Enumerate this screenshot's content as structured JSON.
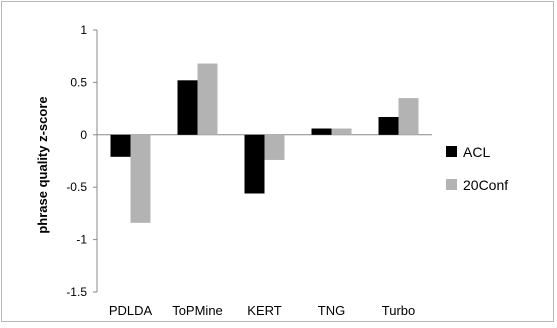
{
  "chart_data": {
    "type": "bar",
    "title": "",
    "xlabel": "",
    "ylabel": "phrase quality z-score",
    "ylim": [
      -1.5,
      1
    ],
    "yticks": [
      1,
      0.5,
      0,
      -0.5,
      -1,
      -1.5
    ],
    "ytick_labels": [
      "1",
      "0.5",
      "0",
      "-0.5",
      "-1",
      "-1.5"
    ],
    "categories": [
      "PDLDA",
      "ToPMine",
      "KERT",
      "TNG",
      "Turbo"
    ],
    "grid": false,
    "legend_position": "right",
    "series": [
      {
        "name": "ACL",
        "color": "#000000",
        "values": [
          -0.21,
          0.52,
          -0.56,
          0.06,
          0.17
        ]
      },
      {
        "name": "20Conf",
        "color": "#b3b3b3",
        "values": [
          -0.84,
          0.68,
          -0.24,
          0.06,
          0.35
        ]
      }
    ]
  }
}
